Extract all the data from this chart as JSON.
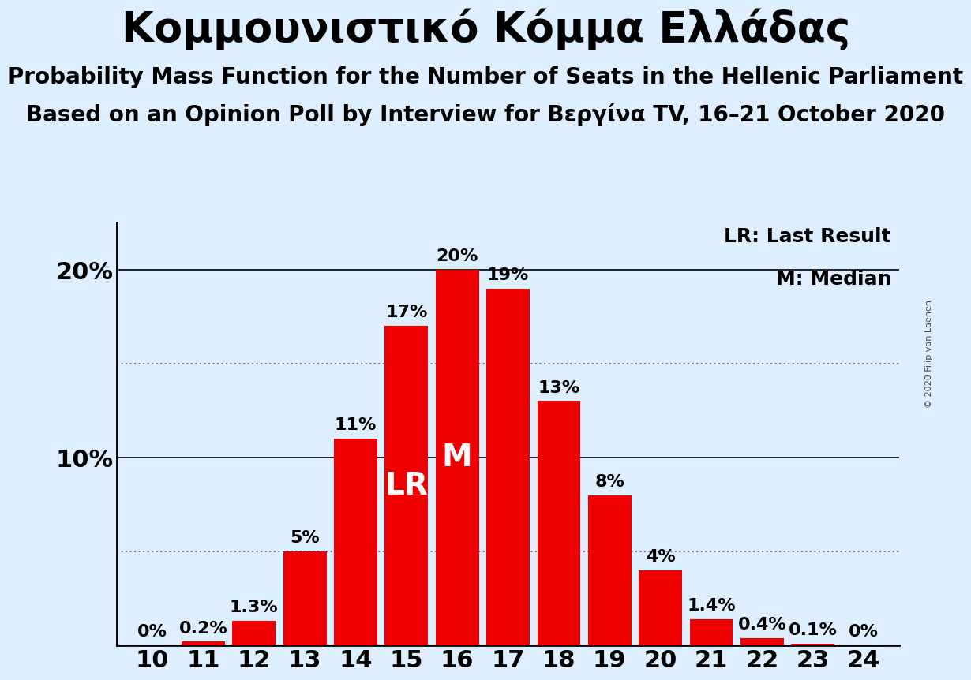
{
  "title": "Κομμουνιστικό Κόμμα Ελλάδας",
  "subtitle1": "Probability Mass Function for the Number of Seats in the Hellenic Parliament",
  "subtitle2": "Based on an Opinion Poll by Interview for Βεργίνα TV, 16–21 October 2020",
  "copyright": "© 2020 Filip van Laenen",
  "seats": [
    10,
    11,
    12,
    13,
    14,
    15,
    16,
    17,
    18,
    19,
    20,
    21,
    22,
    23,
    24
  ],
  "probabilities": [
    0.0,
    0.2,
    1.3,
    5.0,
    11.0,
    17.0,
    20.0,
    19.0,
    13.0,
    8.0,
    4.0,
    1.4,
    0.4,
    0.1,
    0.0
  ],
  "labels": [
    "0%",
    "0.2%",
    "1.3%",
    "5%",
    "11%",
    "17%",
    "20%",
    "19%",
    "13%",
    "8%",
    "4%",
    "1.4%",
    "0.4%",
    "0.1%",
    "0%"
  ],
  "bar_color": "#ee0000",
  "background_color": "#ddeeff",
  "lr_seat": 15,
  "median_seat": 16,
  "lr_label": "LR",
  "median_label": "M",
  "legend_lr": "LR: Last Result",
  "legend_m": "M: Median",
  "dotted_lines": [
    5.0,
    15.0
  ],
  "ylabel_fontsize": 22,
  "bar_label_fontsize": 16,
  "bar_annotation_fontsize": 28,
  "xtick_fontsize": 22,
  "title_fontsize": 38,
  "subtitle_fontsize": 20,
  "legend_fontsize": 18
}
